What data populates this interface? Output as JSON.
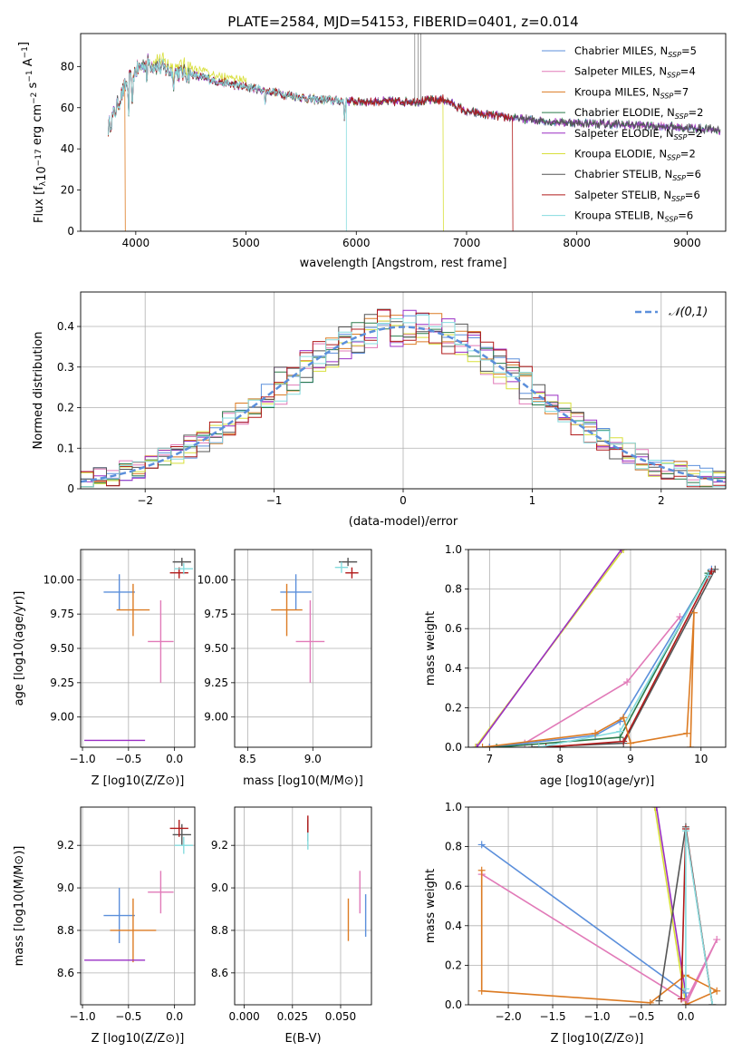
{
  "colors": {
    "chabrier_miles": "#5b8fdb",
    "salpeter_miles": "#e17ab8",
    "kroupa_miles": "#dc7b23",
    "chabrier_elodie": "#2a7a4a",
    "salpeter_elodie": "#9a2fc4",
    "kroupa_elodie": "#d8df3a",
    "chabrier_stelib": "#555555",
    "salpeter_stelib": "#b11a1a",
    "kroupa_stelib": "#86dcdf"
  },
  "chart_data": [
    {
      "id": "spectrum",
      "type": "line",
      "title": "PLATE=2584, MJD=54153, FIBERID=0401, z=0.014",
      "xlabel": "wavelength [Angstrom, rest frame]",
      "ylabel": "Flux [f_λ10^-17 erg cm^-2 s^-1 A^-1]",
      "xlim": [
        3500,
        9350
      ],
      "ylim": [
        0,
        96
      ],
      "xticks": [
        "4000",
        "5000",
        "6000",
        "7000",
        "8000",
        "9000"
      ],
      "yticks": [
        "0",
        "20",
        "40",
        "60",
        "80"
      ],
      "legend_position": "top-right",
      "legend": [
        {
          "name": "Chabrier MILES",
          "nssp": "5",
          "color": "chabrier_miles"
        },
        {
          "name": "Salpeter MILES",
          "nssp": "4",
          "color": "salpeter_miles"
        },
        {
          "name": "Kroupa MILES",
          "nssp": "7",
          "color": "kroupa_miles"
        },
        {
          "name": "Chabrier ELODIE",
          "nssp": "2",
          "color": "chabrier_elodie"
        },
        {
          "name": "Salpeter ELODIE",
          "nssp": "2",
          "color": "salpeter_elodie"
        },
        {
          "name": "Kroupa ELODIE",
          "nssp": "2",
          "color": "kroupa_elodie"
        },
        {
          "name": "Chabrier STELIB",
          "nssp": "6",
          "color": "chabrier_stelib"
        },
        {
          "name": "Salpeter STELIB",
          "nssp": "6",
          "color": "salpeter_stelib"
        },
        {
          "name": "Kroupa STELIB",
          "nssp": "6",
          "color": "kroupa_stelib"
        }
      ],
      "continuum": [
        [
          3750,
          50
        ],
        [
          3900,
          70
        ],
        [
          4000,
          78
        ],
        [
          4100,
          82
        ],
        [
          4300,
          78
        ],
        [
          4500,
          76
        ],
        [
          4800,
          72
        ],
        [
          5000,
          70
        ],
        [
          5300,
          67
        ],
        [
          5600,
          64
        ],
        [
          6000,
          63
        ],
        [
          6500,
          63
        ],
        [
          6800,
          64
        ],
        [
          7000,
          58
        ],
        [
          7400,
          55
        ],
        [
          7800,
          53
        ],
        [
          8300,
          52
        ],
        [
          8800,
          51
        ],
        [
          9300,
          49
        ]
      ],
      "absorption": [
        [
          3934,
          20
        ],
        [
          3969,
          25
        ],
        [
          4102,
          12
        ],
        [
          4340,
          10
        ],
        [
          5175,
          8
        ],
        [
          5893,
          10
        ]
      ],
      "drops_to_zero": [
        {
          "x": 3905,
          "series": "kroupa_miles"
        },
        {
          "x": 5910,
          "series": "kroupa_stelib"
        },
        {
          "x": 6790,
          "series": "kroupa_elodie"
        },
        {
          "x": 7420,
          "series": "salpeter_stelib"
        }
      ]
    },
    {
      "id": "residuals",
      "type": "step",
      "xlabel": "(data-model)/error",
      "ylabel": "Normed distribution",
      "xlim": [
        -2.5,
        2.5
      ],
      "ylim": [
        0,
        0.485
      ],
      "xticks": [
        -2,
        -1,
        0,
        1,
        2
      ],
      "yticks": [
        0.0,
        0.1,
        0.2,
        0.3,
        0.4
      ],
      "legend_position": "top-right",
      "legend_label": "𝒩(0,1)",
      "gaussian": {
        "mean": 0,
        "sigma": 1
      },
      "bin_width": 0.1,
      "series_order": [
        "chabrier_miles",
        "salpeter_miles",
        "kroupa_miles",
        "chabrier_elodie",
        "salpeter_elodie",
        "kroupa_elodie",
        "chabrier_stelib",
        "salpeter_stelib",
        "kroupa_stelib"
      ]
    },
    {
      "id": "age_vs_z",
      "type": "errorbar",
      "xlabel": "Z [log10(Z/Z⊙)]",
      "ylabel": "age [log10(age/yr)]",
      "xlim": [
        -1.02,
        0.22
      ],
      "ylim": [
        8.78,
        10.22
      ],
      "xticks": [
        "−1.0",
        "−0.5",
        "0.0"
      ],
      "yticks": [
        "9.00",
        "9.25",
        "9.50",
        "9.75",
        "10.00"
      ],
      "points": [
        {
          "color": "chabrier_miles",
          "x": -0.6,
          "xerr": 0.17,
          "y": 9.91,
          "yerr": 0.13
        },
        {
          "color": "salpeter_miles",
          "x": -0.15,
          "xerr": 0.14,
          "y": 9.55,
          "yerr": 0.3
        },
        {
          "color": "kroupa_miles",
          "x": -0.45,
          "xerr": 0.18,
          "y": 9.78,
          "yerr": 0.19
        },
        {
          "color": "salpeter_elodie",
          "x": -0.65,
          "xerr": 0.33,
          "y": 8.83,
          "yerr": 0
        },
        {
          "color": "chabrier_stelib",
          "x": 0.08,
          "xerr": 0.1,
          "y": 10.13,
          "yerr": 0.03
        },
        {
          "color": "salpeter_stelib",
          "x": 0.05,
          "xerr": 0.1,
          "y": 10.05,
          "yerr": 0.04
        },
        {
          "color": "kroupa_stelib",
          "x": 0.1,
          "xerr": 0.1,
          "y": 10.08,
          "yerr": 0.04
        }
      ]
    },
    {
      "id": "age_vs_mass",
      "type": "errorbar",
      "xlabel": "mass [log10(M/M⊙)]",
      "ylabel": "",
      "xlim": [
        8.4,
        9.45
      ],
      "ylim": [
        8.78,
        10.22
      ],
      "xticks": [
        "8.5",
        "9.0"
      ],
      "yticks": [
        "9.00",
        "9.25",
        "9.50",
        "9.75",
        "10.00"
      ],
      "points": [
        {
          "color": "chabrier_miles",
          "x": 8.87,
          "xerr": 0.12,
          "y": 9.91,
          "yerr": 0.13
        },
        {
          "color": "salpeter_miles",
          "x": 8.98,
          "xerr": 0.11,
          "y": 9.55,
          "yerr": 0.3
        },
        {
          "color": "kroupa_miles",
          "x": 8.8,
          "xerr": 0.12,
          "y": 9.78,
          "yerr": 0.19
        },
        {
          "color": "chabrier_stelib",
          "x": 9.27,
          "xerr": 0.07,
          "y": 10.13,
          "yerr": 0.03
        },
        {
          "color": "salpeter_stelib",
          "x": 9.3,
          "xerr": 0.05,
          "y": 10.05,
          "yerr": 0.04
        },
        {
          "color": "kroupa_stelib",
          "x": 9.22,
          "xerr": 0.05,
          "y": 10.09,
          "yerr": 0.04
        }
      ]
    },
    {
      "id": "weight_vs_age",
      "type": "line",
      "xlabel": "age [log10(age/yr)]",
      "ylabel": "mass weight",
      "xlim": [
        6.7,
        10.35
      ],
      "ylim": [
        0,
        1
      ],
      "xticks": [
        7,
        8,
        9,
        10
      ],
      "yticks": [
        "0.0",
        "0.2",
        "0.4",
        "0.6",
        "0.8",
        "1.0"
      ],
      "series": [
        {
          "color": "kroupa_elodie",
          "x": [
            6.8,
            8.9
          ],
          "y": [
            0.0,
            1.0
          ]
        },
        {
          "color": "salpeter_elodie",
          "x": [
            6.82,
            8.87
          ],
          "y": [
            0.0,
            1.0
          ]
        },
        {
          "color": "salpeter_miles",
          "x": [
            7.0,
            7.5,
            8.95,
            9.7
          ],
          "y": [
            0.0,
            0.02,
            0.33,
            0.66
          ]
        },
        {
          "color": "chabrier_miles",
          "x": [
            7.0,
            8.5,
            8.85,
            10.15
          ],
          "y": [
            0.0,
            0.06,
            0.13,
            0.9
          ]
        },
        {
          "color": "chabrier_elodie",
          "x": [
            7.1,
            8.85,
            10.1
          ],
          "y": [
            0.0,
            0.05,
            0.88
          ]
        },
        {
          "color": "chabrier_stelib",
          "x": [
            7.6,
            8.9,
            10.2
          ],
          "y": [
            0.0,
            0.02,
            0.9
          ]
        },
        {
          "color": "salpeter_stelib",
          "x": [
            7.8,
            8.9,
            10.15
          ],
          "y": [
            0.0,
            0.03,
            0.89
          ]
        },
        {
          "color": "kroupa_stelib",
          "x": [
            7.7,
            8.85,
            10.1
          ],
          "y": [
            0.0,
            0.08,
            0.87
          ]
        },
        {
          "color": "kroupa_miles",
          "x": [
            6.9,
            8.5,
            8.9,
            9.0,
            9.8,
            9.9,
            9.85
          ],
          "y": [
            0.0,
            0.07,
            0.15,
            0.02,
            0.07,
            0.68,
            0.0
          ]
        }
      ]
    },
    {
      "id": "mass_vs_z",
      "type": "errorbar",
      "xlabel": "Z [log10(Z/Z⊙)]",
      "ylabel": "mass [log10(M/M⊙)]",
      "xlim": [
        -1.02,
        0.22
      ],
      "ylim": [
        8.45,
        9.38
      ],
      "xticks": [
        "−1.0",
        "−0.5",
        "0.0"
      ],
      "yticks": [
        "8.6",
        "8.8",
        "9.0",
        "9.2"
      ],
      "points": [
        {
          "color": "chabrier_miles",
          "x": -0.6,
          "xerr": 0.17,
          "y": 8.87,
          "yerr": 0.13
        },
        {
          "color": "salpeter_miles",
          "x": -0.15,
          "xerr": 0.14,
          "y": 8.98,
          "yerr": 0.1
        },
        {
          "color": "kroupa_miles",
          "x": -0.45,
          "xerr": 0.25,
          "y": 8.8,
          "yerr": 0.15
        },
        {
          "color": "salpeter_elodie",
          "x": -0.65,
          "xerr": 0.33,
          "y": 8.66,
          "yerr": 0
        },
        {
          "color": "chabrier_stelib",
          "x": 0.08,
          "xerr": 0.1,
          "y": 9.25,
          "yerr": 0.05
        },
        {
          "color": "salpeter_stelib",
          "x": 0.05,
          "xerr": 0.1,
          "y": 9.28,
          "yerr": 0.04
        },
        {
          "color": "kroupa_stelib",
          "x": 0.1,
          "xerr": 0.1,
          "y": 9.2,
          "yerr": 0.04
        }
      ]
    },
    {
      "id": "mass_vs_ebv",
      "type": "errorbar",
      "xlabel": "E(B-V)",
      "ylabel": "",
      "xlim": [
        -0.005,
        0.066
      ],
      "ylim": [
        8.45,
        9.38
      ],
      "xticks": [
        "0.000",
        "0.025",
        "0.050"
      ],
      "yticks": [
        "8.6",
        "8.8",
        "9.0",
        "9.2"
      ],
      "points": [
        {
          "color": "chabrier_miles",
          "x": 0.063,
          "xerr": 0,
          "y": 8.87,
          "yerr": 0.1
        },
        {
          "color": "salpeter_miles",
          "x": 0.06,
          "xerr": 0,
          "y": 8.98,
          "yerr": 0.1
        },
        {
          "color": "kroupa_miles",
          "x": 0.054,
          "xerr": 0,
          "y": 8.85,
          "yerr": 0.1
        },
        {
          "color": "chabrier_stelib",
          "x": 0.033,
          "xerr": 0,
          "y": 9.27,
          "yerr": 0.05
        },
        {
          "color": "salpeter_stelib",
          "x": 0.033,
          "xerr": 0,
          "y": 9.3,
          "yerr": 0.04
        },
        {
          "color": "kroupa_stelib",
          "x": 0.033,
          "xerr": 0,
          "y": 9.22,
          "yerr": 0.04
        }
      ]
    },
    {
      "id": "weight_vs_z",
      "type": "line",
      "xlabel": "Z [log10(Z/Z⊙)]",
      "ylabel": "mass weight",
      "xlim": [
        -2.45,
        0.45
      ],
      "ylim": [
        0,
        1
      ],
      "xticks": [
        "−2.0",
        "−1.5",
        "−1.0",
        "−0.5",
        "0.0"
      ],
      "yticks": [
        "0.0",
        "0.2",
        "0.4",
        "0.6",
        "0.8",
        "1.0"
      ],
      "series": [
        {
          "color": "kroupa_elodie",
          "x": [
            -0.35,
            0.0
          ],
          "y": [
            1.0,
            0.0
          ]
        },
        {
          "color": "salpeter_elodie",
          "x": [
            -0.33,
            0.02
          ],
          "y": [
            1.0,
            0.0
          ]
        },
        {
          "color": "chabrier_miles",
          "x": [
            -2.3,
            0.0,
            0.0
          ],
          "y": [
            0.81,
            0.06,
            0.0
          ]
        },
        {
          "color": "salpeter_miles",
          "x": [
            -2.3,
            0.0,
            0.35,
            0.0
          ],
          "y": [
            0.66,
            0.02,
            0.33,
            0.0
          ]
        },
        {
          "color": "kroupa_miles",
          "x": [
            -2.3,
            -2.3,
            -0.4,
            0.0,
            0.35,
            0.0
          ],
          "y": [
            0.68,
            0.07,
            0.01,
            0.15,
            0.07,
            0.0
          ]
        },
        {
          "color": "chabrier_stelib",
          "x": [
            -0.3,
            0.0,
            0.3
          ],
          "y": [
            0.02,
            0.9,
            0.0
          ]
        },
        {
          "color": "salpeter_stelib",
          "x": [
            -0.05,
            0.0,
            0.3
          ],
          "y": [
            0.03,
            0.89,
            0.0
          ]
        },
        {
          "color": "kroupa_stelib",
          "x": [
            0.0,
            0.0,
            0.3
          ],
          "y": [
            0.08,
            0.88,
            0.0
          ]
        }
      ]
    }
  ]
}
